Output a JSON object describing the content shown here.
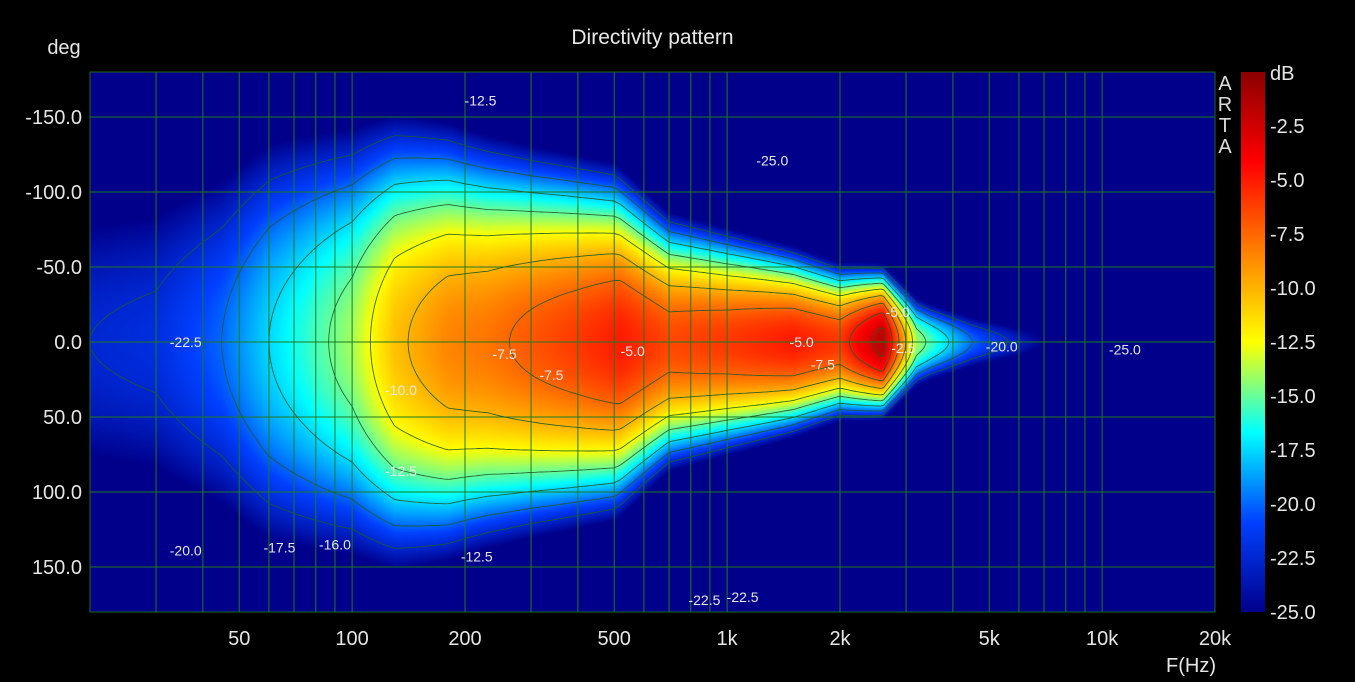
{
  "chart_data": {
    "type": "heatmap",
    "title": "Directivity pattern",
    "xlabel": "F(Hz)",
    "ylabel": "deg",
    "x_scale": "log",
    "xlim": [
      20,
      20000
    ],
    "ylim": [
      -180,
      180
    ],
    "x_tick_labels": [
      {
        "value": 50,
        "label": "50"
      },
      {
        "value": 100,
        "label": "100"
      },
      {
        "value": 200,
        "label": "200"
      },
      {
        "value": 500,
        "label": "500"
      },
      {
        "value": 1000,
        "label": "1k"
      },
      {
        "value": 2000,
        "label": "2k"
      },
      {
        "value": 5000,
        "label": "5k"
      },
      {
        "value": 10000,
        "label": "10k"
      },
      {
        "value": 20000,
        "label": "20k"
      }
    ],
    "y_tick_labels": [
      {
        "value": -150,
        "label": "-150.0"
      },
      {
        "value": -100,
        "label": "-100.0"
      },
      {
        "value": -50,
        "label": "-50.0"
      },
      {
        "value": 0,
        "label": "0.0"
      },
      {
        "value": 50,
        "label": "50.0"
      },
      {
        "value": 100,
        "label": "100.0"
      },
      {
        "value": 150,
        "label": "150.0"
      }
    ],
    "colorbar": {
      "unit": "dB",
      "range": [
        -25,
        0
      ],
      "tick_labels": [
        {
          "value": -2.5,
          "label": "-2.5"
        },
        {
          "value": -5,
          "label": "-5.0"
        },
        {
          "value": -7.5,
          "label": "-7.5"
        },
        {
          "value": -10,
          "label": "-10.0"
        },
        {
          "value": -12.5,
          "label": "-12.5"
        },
        {
          "value": -15,
          "label": "-15.0"
        },
        {
          "value": -17.5,
          "label": "-17.5"
        },
        {
          "value": -20,
          "label": "-20.0"
        },
        {
          "value": -22.5,
          "label": "-22.5"
        },
        {
          "value": -25,
          "label": "-25.0"
        }
      ],
      "colors": [
        "#8b0000",
        "#ff0000",
        "#ff8000",
        "#ffff00",
        "#00ffff",
        "#0040ff",
        "#00008b"
      ]
    },
    "vertical_label": [
      "A",
      "R",
      "T",
      "A"
    ],
    "grid": true,
    "contour_levels": [
      -2.5,
      -5,
      -7.5,
      -10,
      -12.5,
      -15,
      -17.5,
      -20,
      -22.5,
      -25
    ],
    "on_axis_response_db": [
      {
        "f": 20,
        "db": -22.5
      },
      {
        "f": 30,
        "db": -22.0
      },
      {
        "f": 45,
        "db": -20.0
      },
      {
        "f": 60,
        "db": -17.5
      },
      {
        "f": 75,
        "db": -16.0
      },
      {
        "f": 100,
        "db": -14.0
      },
      {
        "f": 130,
        "db": -10.5
      },
      {
        "f": 180,
        "db": -8.5
      },
      {
        "f": 230,
        "db": -8.0
      },
      {
        "f": 300,
        "db": -7.0
      },
      {
        "f": 400,
        "db": -6.0
      },
      {
        "f": 520,
        "db": -5.0
      },
      {
        "f": 700,
        "db": -6.5
      },
      {
        "f": 1000,
        "db": -6.0
      },
      {
        "f": 1500,
        "db": -5.0
      },
      {
        "f": 2000,
        "db": -6.0
      },
      {
        "f": 2600,
        "db": -1.5
      },
      {
        "f": 3200,
        "db": -14.0
      },
      {
        "f": 4500,
        "db": -20.0
      },
      {
        "f": 7000,
        "db": -25.0
      },
      {
        "f": 10000,
        "db": -25.0
      },
      {
        "f": 20000,
        "db": -25.0
      }
    ],
    "beamwidth_deg": [
      {
        "f": 20,
        "w": 180
      },
      {
        "f": 60,
        "w": 180
      },
      {
        "f": 100,
        "w": 160
      },
      {
        "f": 200,
        "w": 130
      },
      {
        "f": 300,
        "w": 115
      },
      {
        "f": 500,
        "w": 100
      },
      {
        "f": 700,
        "w": 75
      },
      {
        "f": 1000,
        "w": 65
      },
      {
        "f": 2000,
        "w": 45
      },
      {
        "f": 2600,
        "w": 40
      },
      {
        "f": 3500,
        "w": 30
      },
      {
        "f": 5000,
        "w": 25
      },
      {
        "f": 20000,
        "w": 20
      }
    ],
    "contour_labels": [
      {
        "text": "-12.5",
        "f": 220,
        "deg": -161
      },
      {
        "text": "-25.0",
        "f": 1320,
        "deg": -121
      },
      {
        "text": "-7.5",
        "f": 340,
        "deg": 22
      },
      {
        "text": "-7.5",
        "f": 255,
        "deg": 8
      },
      {
        "text": "-22.5",
        "f": 36,
        "deg": 0
      },
      {
        "text": "-5.0",
        "f": 560,
        "deg": 6
      },
      {
        "text": "-5.0",
        "f": 1580,
        "deg": 0
      },
      {
        "text": "-7.5",
        "f": 1800,
        "deg": 15
      },
      {
        "text": "-5.0",
        "f": 2850,
        "deg": -20
      },
      {
        "text": "-2.5",
        "f": 2950,
        "deg": 4
      },
      {
        "text": "-20.0",
        "f": 5400,
        "deg": 3
      },
      {
        "text": "-25.0",
        "f": 11500,
        "deg": 5
      },
      {
        "text": "-10.0",
        "f": 135,
        "deg": 32
      },
      {
        "text": "-12.5",
        "f": 135,
        "deg": 86
      },
      {
        "text": "-20.0",
        "f": 36,
        "deg": 139
      },
      {
        "text": "-17.5",
        "f": 64,
        "deg": 137
      },
      {
        "text": "-16.0",
        "f": 90,
        "deg": 135
      },
      {
        "text": "-12.5",
        "f": 215,
        "deg": 143
      },
      {
        "text": "-22.5",
        "f": 870,
        "deg": 172
      },
      {
        "text": "-22.5",
        "f": 1100,
        "deg": 170
      }
    ]
  }
}
